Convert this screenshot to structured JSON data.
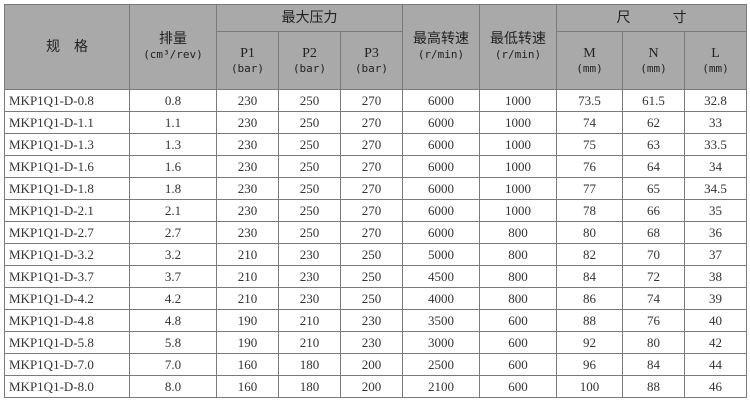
{
  "header": {
    "spec": "规　格",
    "displacement": "排量",
    "displacement_unit": "(cm³/rev)",
    "max_pressure": "最大压力",
    "p1": "P1",
    "p2": "P2",
    "p3": "P3",
    "bar_unit": "(bar)",
    "max_speed": "最高转速",
    "min_speed": "最低转速",
    "speed_unit": "(r/min)",
    "dimensions": "尺　　　寸",
    "m": "M",
    "n": "N",
    "l": "L",
    "mm_unit": "(mm)"
  },
  "rows": [
    [
      "MKP1Q1-D-0.8",
      "0.8",
      "230",
      "250",
      "270",
      "6000",
      "1000",
      "73.5",
      "61.5",
      "32.8"
    ],
    [
      "MKP1Q1-D-1.1",
      "1.1",
      "230",
      "250",
      "270",
      "6000",
      "1000",
      "74",
      "62",
      "33"
    ],
    [
      "MKP1Q1-D-1.3",
      "1.3",
      "230",
      "250",
      "270",
      "6000",
      "1000",
      "75",
      "63",
      "33.5"
    ],
    [
      "MKP1Q1-D-1.6",
      "1.6",
      "230",
      "250",
      "270",
      "6000",
      "1000",
      "76",
      "64",
      "34"
    ],
    [
      "MKP1Q1-D-1.8",
      "1.8",
      "230",
      "250",
      "270",
      "6000",
      "1000",
      "77",
      "65",
      "34.5"
    ],
    [
      "MKP1Q1-D-2.1",
      "2.1",
      "230",
      "250",
      "270",
      "6000",
      "1000",
      "78",
      "66",
      "35"
    ],
    [
      "MKP1Q1-D-2.7",
      "2.7",
      "230",
      "250",
      "270",
      "6000",
      "800",
      "80",
      "68",
      "36"
    ],
    [
      "MKP1Q1-D-3.2",
      "3.2",
      "210",
      "230",
      "250",
      "5000",
      "800",
      "82",
      "70",
      "37"
    ],
    [
      "MKP1Q1-D-3.7",
      "3.7",
      "210",
      "230",
      "250",
      "4500",
      "800",
      "84",
      "72",
      "38"
    ],
    [
      "MKP1Q1-D-4.2",
      "4.2",
      "210",
      "230",
      "250",
      "4000",
      "800",
      "86",
      "74",
      "39"
    ],
    [
      "MKP1Q1-D-4.8",
      "4.8",
      "190",
      "210",
      "230",
      "3500",
      "600",
      "88",
      "76",
      "40"
    ],
    [
      "MKP1Q1-D-5.8",
      "5.8",
      "190",
      "210",
      "230",
      "3000",
      "600",
      "92",
      "80",
      "42"
    ],
    [
      "MKP1Q1-D-7.0",
      "7.0",
      "160",
      "180",
      "200",
      "2500",
      "600",
      "96",
      "84",
      "44"
    ],
    [
      "MKP1Q1-D-8.0",
      "8.0",
      "160",
      "180",
      "200",
      "2100",
      "600",
      "100",
      "88",
      "46"
    ]
  ]
}
